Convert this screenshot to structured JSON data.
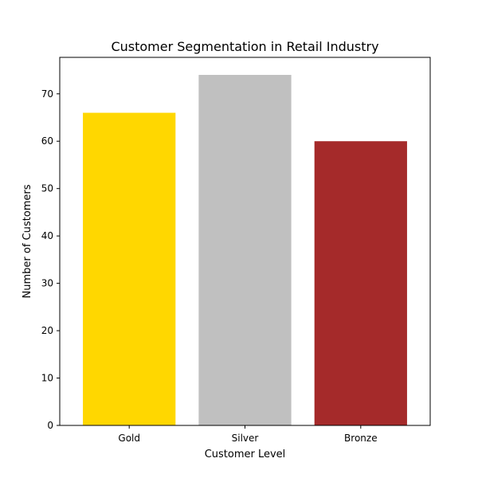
{
  "chart_data": {
    "type": "bar",
    "title": "Customer Segmentation in Retail Industry",
    "xlabel": "Customer Level",
    "ylabel": "Number of Customers",
    "categories": [
      "Gold",
      "Silver",
      "Bronze"
    ],
    "values": [
      66,
      74,
      60
    ],
    "colors": [
      "#ffd700",
      "#c0c0c0",
      "#a52a2a"
    ],
    "ylim": [
      0,
      77.7
    ],
    "yticks": [
      0,
      10,
      20,
      30,
      40,
      50,
      60,
      70
    ],
    "grid": false,
    "legend": "none"
  }
}
